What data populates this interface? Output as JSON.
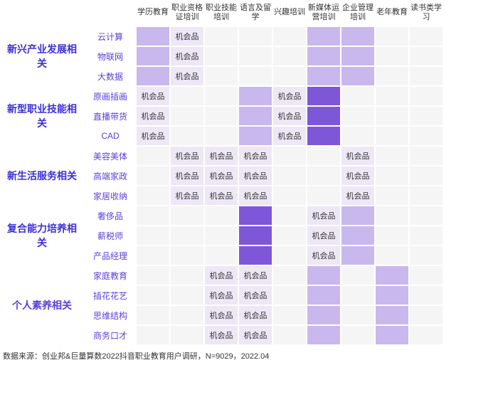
{
  "palette": {
    "intensity": {
      "0": "#f5f5f5",
      "1": "#ede7f6",
      "2": "#c9b8ee",
      "3": "#7e57d8"
    },
    "group_colors": [
      "#3b2fd9",
      "#3b2fd9",
      "#3b2fd9",
      "#3b2fd9",
      "#5b3fd9"
    ],
    "sub_color": "#5b3fd9",
    "cell_text_color": "#333333"
  },
  "layout": {
    "col_widths": [
      "120px",
      "72px",
      "48px",
      "48px",
      "48px",
      "48px",
      "48px",
      "48px",
      "48px",
      "48px",
      "48px"
    ]
  },
  "columns": [
    "学历教育",
    "职业资格证培训",
    "职业技能培训",
    "语言及留学",
    "兴趣培训",
    "新媒体运营培训",
    "企业管理培训",
    "老年教育",
    "读书类学习"
  ],
  "label_opportunity": "机会品",
  "groups": [
    {
      "name": "新兴产业发展相关",
      "subs": [
        {
          "name": "云计算",
          "cells": [
            {
              "i": 2
            },
            {
              "i": 1,
              "t": true
            },
            {
              "i": 0
            },
            {
              "i": 0
            },
            {
              "i": 0
            },
            {
              "i": 2
            },
            {
              "i": 2
            },
            {
              "i": 0
            },
            {
              "i": 0
            }
          ]
        },
        {
          "name": "物联网",
          "cells": [
            {
              "i": 2
            },
            {
              "i": 1,
              "t": true
            },
            {
              "i": 0
            },
            {
              "i": 0
            },
            {
              "i": 0
            },
            {
              "i": 2
            },
            {
              "i": 2
            },
            {
              "i": 0
            },
            {
              "i": 0
            }
          ]
        },
        {
          "name": "大数据",
          "cells": [
            {
              "i": 2
            },
            {
              "i": 1,
              "t": true
            },
            {
              "i": 0
            },
            {
              "i": 0
            },
            {
              "i": 0
            },
            {
              "i": 2
            },
            {
              "i": 2
            },
            {
              "i": 0
            },
            {
              "i": 0
            }
          ]
        }
      ]
    },
    {
      "name": "新型职业技能相关",
      "subs": [
        {
          "name": "原画插画",
          "cells": [
            {
              "i": 1,
              "t": true
            },
            {
              "i": 0
            },
            {
              "i": 0
            },
            {
              "i": 2
            },
            {
              "i": 1,
              "t": true
            },
            {
              "i": 3
            },
            {
              "i": 0
            },
            {
              "i": 0
            },
            {
              "i": 0
            }
          ]
        },
        {
          "name": "直播带货",
          "cells": [
            {
              "i": 1,
              "t": true
            },
            {
              "i": 0
            },
            {
              "i": 0
            },
            {
              "i": 2
            },
            {
              "i": 1,
              "t": true
            },
            {
              "i": 3
            },
            {
              "i": 0
            },
            {
              "i": 0
            },
            {
              "i": 0
            }
          ]
        },
        {
          "name": "CAD",
          "cells": [
            {
              "i": 1,
              "t": true
            },
            {
              "i": 0
            },
            {
              "i": 0
            },
            {
              "i": 2
            },
            {
              "i": 1,
              "t": true
            },
            {
              "i": 3
            },
            {
              "i": 0
            },
            {
              "i": 0
            },
            {
              "i": 0
            }
          ]
        }
      ]
    },
    {
      "name": "新生活服务相关",
      "subs": [
        {
          "name": "美容美体",
          "cells": [
            {
              "i": 0
            },
            {
              "i": 1,
              "t": true
            },
            {
              "i": 1,
              "t": true
            },
            {
              "i": 1,
              "t": true
            },
            {
              "i": 0
            },
            {
              "i": 0
            },
            {
              "i": 1,
              "t": true
            },
            {
              "i": 0
            },
            {
              "i": 0
            }
          ]
        },
        {
          "name": "高端家政",
          "cells": [
            {
              "i": 0
            },
            {
              "i": 1,
              "t": true
            },
            {
              "i": 1,
              "t": true
            },
            {
              "i": 1,
              "t": true
            },
            {
              "i": 0
            },
            {
              "i": 0
            },
            {
              "i": 1,
              "t": true
            },
            {
              "i": 0
            },
            {
              "i": 0
            }
          ]
        },
        {
          "name": "家居收纳",
          "cells": [
            {
              "i": 0
            },
            {
              "i": 1,
              "t": true
            },
            {
              "i": 1,
              "t": true
            },
            {
              "i": 1,
              "t": true
            },
            {
              "i": 0
            },
            {
              "i": 0
            },
            {
              "i": 1,
              "t": true
            },
            {
              "i": 0
            },
            {
              "i": 0
            }
          ]
        }
      ]
    },
    {
      "name": "复合能力培养相关",
      "subs": [
        {
          "name": "奢侈品",
          "cells": [
            {
              "i": 0
            },
            {
              "i": 0
            },
            {
              "i": 0
            },
            {
              "i": 3
            },
            {
              "i": 0
            },
            {
              "i": 1,
              "t": true
            },
            {
              "i": 2
            },
            {
              "i": 0
            },
            {
              "i": 0
            }
          ]
        },
        {
          "name": "薪税师",
          "cells": [
            {
              "i": 0
            },
            {
              "i": 0
            },
            {
              "i": 0
            },
            {
              "i": 3
            },
            {
              "i": 0
            },
            {
              "i": 1,
              "t": true
            },
            {
              "i": 2
            },
            {
              "i": 0
            },
            {
              "i": 0
            }
          ]
        },
        {
          "name": "产品经理",
          "cells": [
            {
              "i": 0
            },
            {
              "i": 0
            },
            {
              "i": 0
            },
            {
              "i": 3
            },
            {
              "i": 0
            },
            {
              "i": 1,
              "t": true
            },
            {
              "i": 2
            },
            {
              "i": 0
            },
            {
              "i": 0
            }
          ]
        }
      ]
    },
    {
      "name": "个人素养相关",
      "subs": [
        {
          "name": "家庭教育",
          "cells": [
            {
              "i": 0
            },
            {
              "i": 0
            },
            {
              "i": 1,
              "t": true
            },
            {
              "i": 1,
              "t": true
            },
            {
              "i": 0
            },
            {
              "i": 2
            },
            {
              "i": 0
            },
            {
              "i": 2
            },
            {
              "i": 0
            }
          ]
        },
        {
          "name": "插花花艺",
          "cells": [
            {
              "i": 0
            },
            {
              "i": 0
            },
            {
              "i": 1,
              "t": true
            },
            {
              "i": 1,
              "t": true
            },
            {
              "i": 0
            },
            {
              "i": 2
            },
            {
              "i": 0
            },
            {
              "i": 2
            },
            {
              "i": 0
            }
          ]
        },
        {
          "name": "思维结构",
          "cells": [
            {
              "i": 0
            },
            {
              "i": 0
            },
            {
              "i": 1,
              "t": true
            },
            {
              "i": 1,
              "t": true
            },
            {
              "i": 0
            },
            {
              "i": 2
            },
            {
              "i": 0
            },
            {
              "i": 2
            },
            {
              "i": 0
            }
          ]
        },
        {
          "name": "商务口才",
          "cells": [
            {
              "i": 0
            },
            {
              "i": 0
            },
            {
              "i": 1,
              "t": true
            },
            {
              "i": 1,
              "t": true
            },
            {
              "i": 0
            },
            {
              "i": 2
            },
            {
              "i": 0
            },
            {
              "i": 2
            },
            {
              "i": 0
            }
          ]
        }
      ]
    }
  ],
  "source": "数据来源：创业邦&巨量算数2022抖音职业教育用户调研，N=9029，2022.04"
}
